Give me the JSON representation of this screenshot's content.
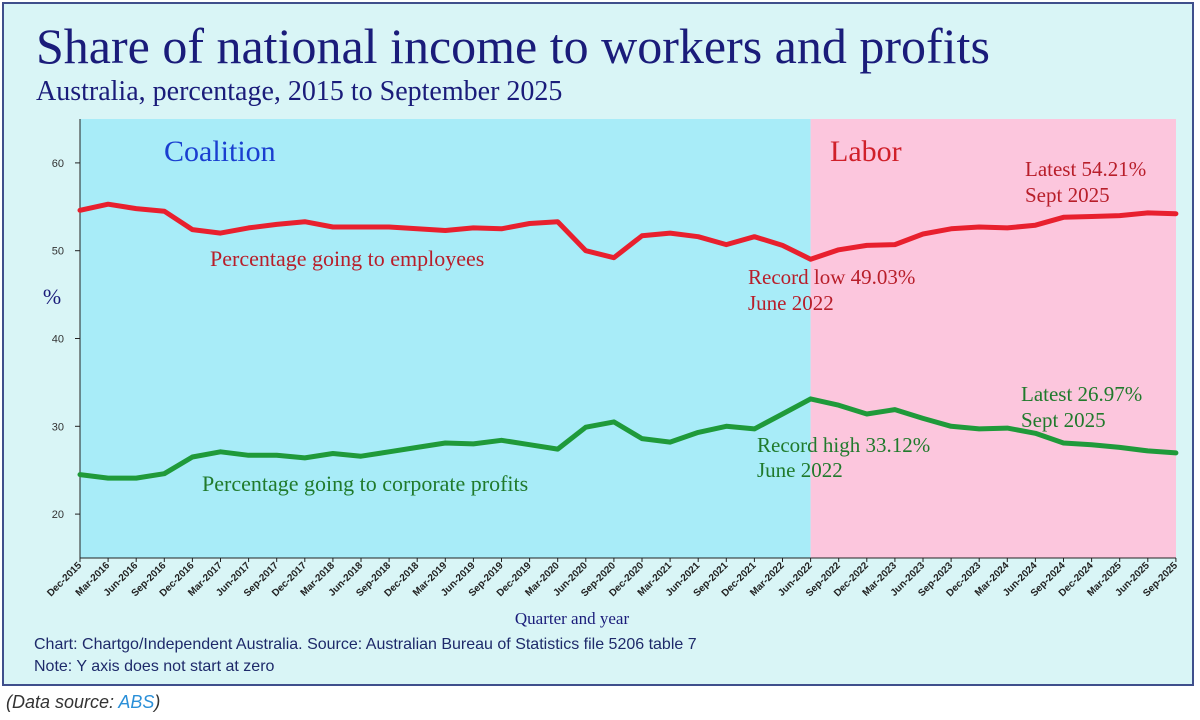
{
  "title": "Share of national income to workers and profits",
  "subtitle": "Australia, percentage, 2015 to September 2025",
  "notes": {
    "credit": "Chart: Chartgo/Independent Australia. Source: Australian Bureau of Statistics file 5206 table 7",
    "axis_note": "Note: Y axis does not start at zero"
  },
  "source_line": {
    "prefix": "(Data source: ",
    "link_text": "ABS",
    "suffix": ")"
  },
  "colors": {
    "coalition_band": "#a8ecf8",
    "labor_band": "#fcc6dd",
    "employees_line": "#e8202e",
    "profits_line": "#1f9a3a",
    "coalition_text": "#1a3fd0",
    "labor_text": "#d0202a",
    "employees_text": "#b81e2a",
    "profits_text": "#207a2c"
  },
  "chart_data": {
    "type": "line",
    "xlabel": "Quarter and year",
    "ylabel": "%",
    "ylim": [
      15,
      65
    ],
    "yticks": [
      20,
      30,
      40,
      50,
      60
    ],
    "grid": false,
    "categories": [
      "Dec-2015",
      "Mar-2016",
      "Jun-2016",
      "Sep-2016",
      "Dec-2016",
      "Mar-2017",
      "Jun-2017",
      "Sep-2017",
      "Dec-2017",
      "Mar-2018",
      "Jun-2018",
      "Sep-2018",
      "Dec-2018",
      "Mar-2019",
      "Jun-2019",
      "Sep-2019",
      "Dec-2019",
      "Mar-2020",
      "Jun-2020",
      "Sep-2020",
      "Dec-2020",
      "Mar-2021",
      "Jun-2021",
      "Sep-2021",
      "Dec-2021",
      "Mar-2022",
      "Jun-2022",
      "Sep-2022",
      "Dec-2022",
      "Mar-2023",
      "Jun-2023",
      "Sep-2023",
      "Dec-2023",
      "Mar-2024",
      "Jun-2024",
      "Sep-2024",
      "Dec-2024",
      "Mar-2025",
      "Jun-2025",
      "Sep-2025"
    ],
    "series": [
      {
        "name": "Percentage going to employees",
        "values": [
          54.6,
          55.3,
          54.8,
          54.5,
          52.4,
          52.0,
          52.6,
          53.0,
          53.3,
          52.7,
          52.7,
          52.7,
          52.5,
          52.3,
          52.6,
          52.5,
          53.1,
          53.3,
          50.0,
          49.2,
          51.7,
          52.0,
          51.6,
          50.7,
          51.6,
          50.6,
          49.03,
          50.1,
          50.6,
          50.7,
          51.9,
          52.5,
          52.7,
          52.6,
          52.9,
          53.8,
          53.9,
          54.0,
          54.3,
          54.21
        ]
      },
      {
        "name": "Percentage going to corporate profits",
        "values": [
          24.5,
          24.1,
          24.1,
          24.6,
          26.5,
          27.1,
          26.7,
          26.7,
          26.4,
          26.9,
          26.6,
          27.1,
          27.6,
          28.1,
          28.0,
          28.4,
          27.9,
          27.4,
          29.9,
          30.5,
          28.6,
          28.2,
          29.3,
          30.0,
          29.7,
          31.4,
          33.12,
          32.4,
          31.4,
          31.9,
          30.9,
          30.0,
          29.7,
          29.8,
          29.2,
          28.1,
          27.9,
          27.6,
          27.2,
          26.97
        ]
      }
    ],
    "regions": [
      {
        "label": "Coalition",
        "from": "Dec-2015",
        "to": "Jun-2022"
      },
      {
        "label": "Labor",
        "from": "Jun-2022",
        "to": "Sep-2025"
      }
    ],
    "annotations": {
      "emp_low_1": "Record low 49.03%",
      "emp_low_2": "June 2022",
      "emp_latest_1": "Latest 54.21%",
      "emp_latest_2": "Sept 2025",
      "prof_high_1": "Record high 33.12%",
      "prof_high_2": "June 2022",
      "prof_latest_1": "Latest 26.97%",
      "prof_latest_2": "Sept 2025"
    }
  }
}
